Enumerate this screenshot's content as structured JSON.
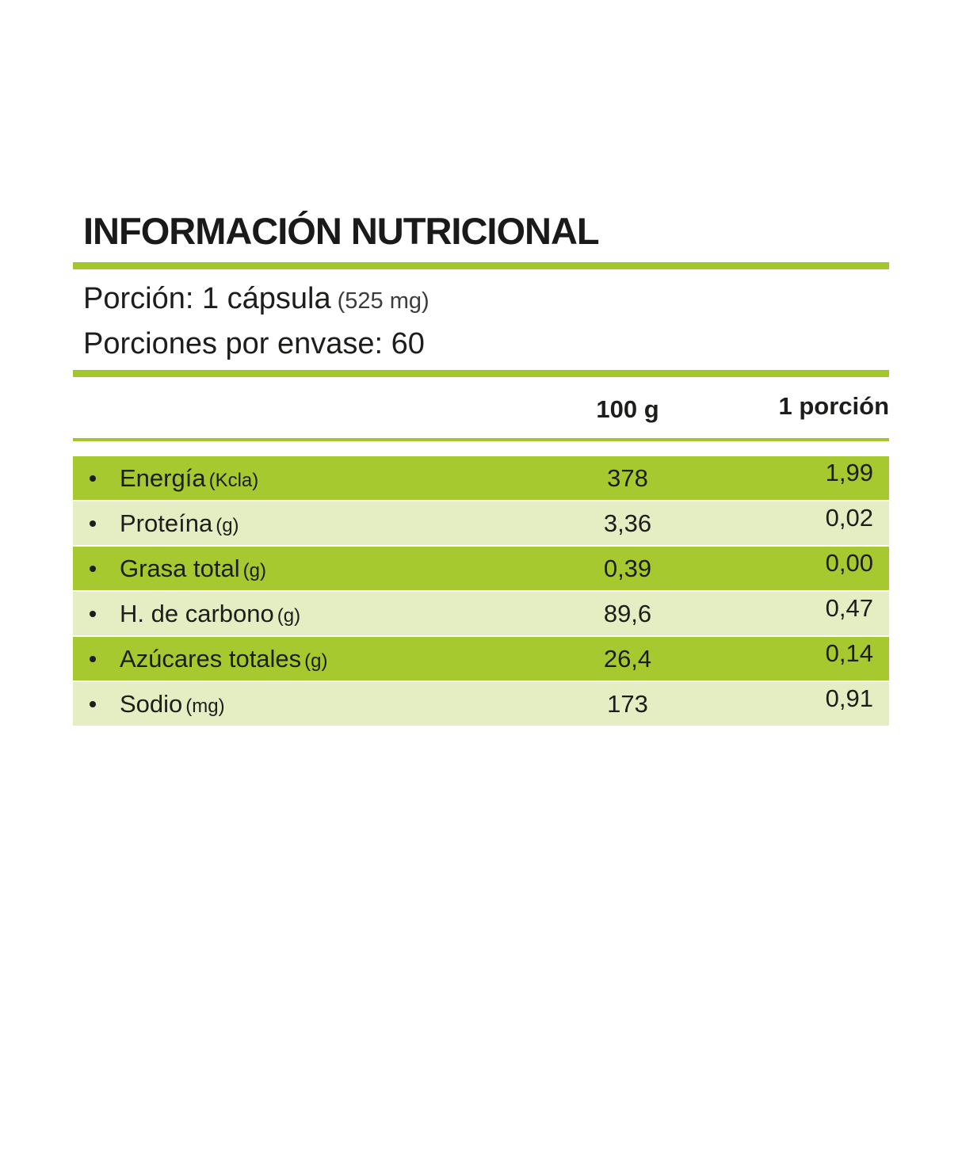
{
  "title": "INFORMACIÓN NUTRICIONAL",
  "serving": {
    "size_label": "Porción: 1 cápsula",
    "size_detail": "(525 mg)",
    "per_container": "Porciones por envase: 60"
  },
  "table": {
    "columns": [
      "100 g",
      "1 porción"
    ],
    "rows": [
      {
        "name": "Energía",
        "unit": "(Kcla)",
        "per_100g": "378",
        "per_porcion": "1,99"
      },
      {
        "name": "Proteína",
        "unit": "(g)",
        "per_100g": "3,36",
        "per_porcion": "0,02"
      },
      {
        "name": "Grasa total",
        "unit": "(g)",
        "per_100g": "0,39",
        "per_porcion": "0,00"
      },
      {
        "name": "H. de carbono",
        "unit": "(g)",
        "per_100g": "89,6",
        "per_porcion": "0,47"
      },
      {
        "name": "Azúcares totales",
        "unit": "(g)",
        "per_100g": "26,4",
        "per_porcion": "0,14"
      },
      {
        "name": "Sodio",
        "unit": "(mg)",
        "per_100g": "173",
        "per_porcion": "0,91"
      }
    ]
  },
  "colors": {
    "accent_green": "#a3c62c",
    "row_dark": "#a6c930",
    "row_light": "#e5edc2",
    "text_dark": "#1d1d1b",
    "text_muted": "#3c3c3a"
  }
}
